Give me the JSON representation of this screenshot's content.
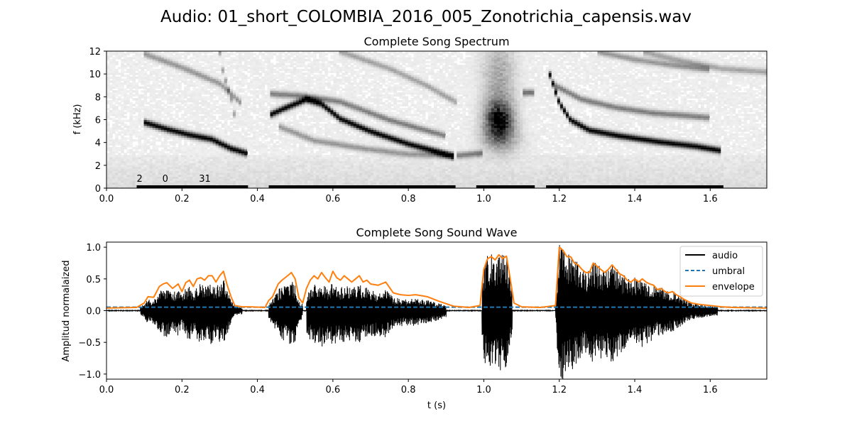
{
  "figure": {
    "suptitle": "Audio: 01_short_COLOMBIA_2016_005_Zonotrichia_capensis.wav"
  },
  "chart_data": [
    {
      "type": "heatmap",
      "title": "Complete Song Spectrum",
      "xlabel": "",
      "ylabel": "f (kHz)",
      "xlim": [
        0.0,
        1.75
      ],
      "ylim": [
        0,
        12
      ],
      "xticks": [
        "0.0",
        "0.2",
        "0.4",
        "0.6",
        "0.8",
        "1.0",
        "1.2",
        "1.4",
        "1.6"
      ],
      "yticks": [
        "0",
        "2",
        "4",
        "6",
        "8",
        "10",
        "12"
      ],
      "colormap": "grayscale (white = low, black = high)",
      "segments": [
        {
          "start": 0.08,
          "end": 0.375
        },
        {
          "start": 0.43,
          "end": 0.925
        },
        {
          "start": 0.98,
          "end": 1.135
        },
        {
          "start": 1.165,
          "end": 1.635
        }
      ],
      "segment_labels": [
        {
          "text": "2",
          "x": 0.08
        },
        {
          "text": "0",
          "x": 0.148
        },
        {
          "text": "31",
          "x": 0.245
        }
      ],
      "traces": [
        {
          "points": [
            [
              0.1,
              5.8
            ],
            [
              0.16,
              5.2
            ],
            [
              0.22,
              4.7
            ],
            [
              0.28,
              4.3
            ],
            [
              0.33,
              3.5
            ],
            [
              0.37,
              3.1
            ]
          ],
          "strength": 0.95
        },
        {
          "points": [
            [
              0.43,
              6.4
            ],
            [
              0.47,
              7.0
            ],
            [
              0.53,
              7.8
            ],
            [
              0.57,
              7.4
            ],
            [
              0.62,
              6.1
            ],
            [
              0.7,
              5.0
            ],
            [
              0.8,
              3.9
            ],
            [
              0.88,
              3.2
            ],
            [
              0.92,
              2.8
            ]
          ],
          "strength": 0.95
        },
        {
          "points": [
            [
              1.17,
              10.5
            ],
            [
              1.2,
              7.5
            ],
            [
              1.23,
              6.0
            ],
            [
              1.28,
              5.1
            ],
            [
              1.36,
              4.6
            ],
            [
              1.46,
              4.1
            ],
            [
              1.56,
              3.7
            ],
            [
              1.63,
              3.3
            ]
          ],
          "strength": 0.95
        },
        {
          "points": [
            [
              0.1,
              11.8
            ],
            [
              0.2,
              10.6
            ],
            [
              0.3,
              9.2
            ],
            [
              0.36,
              7.4
            ]
          ],
          "strength": 0.35
        },
        {
          "points": [
            [
              0.43,
              8.3
            ],
            [
              0.52,
              8.1
            ],
            [
              0.62,
              7.6
            ],
            [
              0.75,
              6.0
            ],
            [
              0.9,
              4.6
            ]
          ],
          "strength": 0.45
        },
        {
          "points": [
            [
              0.62,
              12.0
            ],
            [
              0.75,
              10.5
            ],
            [
              0.85,
              9.0
            ],
            [
              0.93,
              7.5
            ]
          ],
          "strength": 0.3
        },
        {
          "points": [
            [
              0.46,
              5.4
            ],
            [
              0.55,
              4.2
            ],
            [
              0.68,
              3.5
            ],
            [
              0.8,
              3.0
            ],
            [
              0.92,
              2.9
            ]
          ],
          "strength": 0.35
        },
        {
          "points": [
            [
              1.19,
              9.0
            ],
            [
              1.26,
              7.8
            ],
            [
              1.35,
              7.1
            ],
            [
              1.45,
              6.6
            ],
            [
              1.6,
              6.2
            ]
          ],
          "strength": 0.45
        },
        {
          "points": [
            [
              1.3,
              12.0
            ],
            [
              1.4,
              11.3
            ],
            [
              1.5,
              10.8
            ],
            [
              1.6,
              10.4
            ]
          ],
          "strength": 0.35
        },
        {
          "points": [
            [
              1.42,
              12.0
            ],
            [
              1.52,
              11.2
            ],
            [
              1.63,
              10.5
            ],
            [
              1.75,
              10.2
            ]
          ],
          "strength": 0.3
        },
        {
          "points": [
            [
              0.3,
              12.0
            ],
            [
              0.31,
              10.0
            ],
            [
              0.33,
              8.0
            ],
            [
              0.34,
              6.3
            ]
          ],
          "strength": 0.3
        },
        {
          "points": [
            [
              0.93,
              2.9
            ],
            [
              1.0,
              3.1
            ]
          ],
          "strength": 0.45
        },
        {
          "points": [
            [
              1.1,
              8.4
            ],
            [
              1.13,
              8.4
            ]
          ],
          "strength": 0.5
        }
      ],
      "blobs": [
        {
          "x": 1.04,
          "y": 6.0,
          "sx": 0.025,
          "sy": 1.1,
          "strength": 0.85
        },
        {
          "x": 1.04,
          "y": 9.5,
          "sx": 0.03,
          "sy": 2.8,
          "strength": 0.28
        },
        {
          "x": 1.045,
          "y": 4.3,
          "sx": 0.035,
          "sy": 0.9,
          "strength": 0.3
        }
      ]
    },
    {
      "type": "line",
      "title": "Complete Song Sound Wave",
      "xlabel": "t (s)",
      "ylabel": "Amplitud normalaized",
      "xlim": [
        0.0,
        1.75
      ],
      "ylim": [
        -1.08,
        1.08
      ],
      "xticks": [
        "0.0",
        "0.2",
        "0.4",
        "0.6",
        "0.8",
        "1.0",
        "1.2",
        "1.4",
        "1.6"
      ],
      "yticks": [
        "−1.0",
        "−0.5",
        "0.0",
        "0.5",
        "1.0"
      ],
      "legend_position": "upper-right",
      "series": [
        {
          "name": "audio",
          "color": "#000000",
          "style": "solid",
          "x": [
            0.0,
            1.75
          ],
          "y": [
            0.0,
            0.0
          ]
        },
        {
          "name": "umbral",
          "color": "#1f77b4",
          "style": "dashed",
          "x": [
            0.0,
            1.75
          ],
          "y": [
            0.055,
            0.055
          ]
        },
        {
          "name": "envelope",
          "color": "#ff7f0e",
          "style": "solid",
          "x": [
            0.0,
            0.08,
            0.1,
            0.11,
            0.125,
            0.14,
            0.15,
            0.16,
            0.175,
            0.19,
            0.2,
            0.21,
            0.22,
            0.23,
            0.24,
            0.25,
            0.26,
            0.27,
            0.28,
            0.29,
            0.3,
            0.31,
            0.32,
            0.33,
            0.34,
            0.36,
            0.38,
            0.42,
            0.43,
            0.44,
            0.455,
            0.465,
            0.48,
            0.49,
            0.5,
            0.51,
            0.52,
            0.53,
            0.54,
            0.55,
            0.56,
            0.57,
            0.58,
            0.59,
            0.6,
            0.61,
            0.62,
            0.63,
            0.64,
            0.65,
            0.66,
            0.67,
            0.68,
            0.69,
            0.7,
            0.72,
            0.74,
            0.76,
            0.78,
            0.8,
            0.82,
            0.85,
            0.88,
            0.92,
            0.96,
            0.99,
            1.0,
            1.01,
            1.02,
            1.03,
            1.04,
            1.05,
            1.06,
            1.07,
            1.08,
            1.1,
            1.15,
            1.19,
            1.2,
            1.21,
            1.22,
            1.23,
            1.24,
            1.25,
            1.26,
            1.27,
            1.28,
            1.29,
            1.3,
            1.31,
            1.32,
            1.33,
            1.34,
            1.35,
            1.36,
            1.37,
            1.38,
            1.39,
            1.4,
            1.41,
            1.42,
            1.43,
            1.44,
            1.45,
            1.46,
            1.47,
            1.48,
            1.49,
            1.5,
            1.51,
            1.52,
            1.53,
            1.55,
            1.57,
            1.6,
            1.63,
            1.66,
            1.75
          ],
          "y": [
            0.04,
            0.05,
            0.12,
            0.22,
            0.21,
            0.38,
            0.42,
            0.44,
            0.35,
            0.42,
            0.3,
            0.44,
            0.48,
            0.38,
            0.5,
            0.52,
            0.48,
            0.55,
            0.55,
            0.45,
            0.55,
            0.62,
            0.4,
            0.22,
            0.08,
            0.06,
            0.06,
            0.05,
            0.16,
            0.22,
            0.42,
            0.48,
            0.55,
            0.6,
            0.5,
            0.2,
            0.12,
            0.35,
            0.48,
            0.55,
            0.5,
            0.6,
            0.52,
            0.45,
            0.62,
            0.52,
            0.48,
            0.55,
            0.5,
            0.45,
            0.5,
            0.55,
            0.45,
            0.48,
            0.42,
            0.4,
            0.45,
            0.28,
            0.25,
            0.24,
            0.25,
            0.22,
            0.15,
            0.07,
            0.05,
            0.08,
            0.65,
            0.82,
            0.85,
            0.8,
            0.88,
            0.82,
            0.86,
            0.5,
            0.12,
            0.06,
            0.05,
            0.08,
            1.0,
            0.95,
            0.85,
            0.85,
            0.75,
            0.72,
            0.65,
            0.6,
            0.6,
            0.75,
            0.7,
            0.65,
            0.6,
            0.65,
            0.72,
            0.65,
            0.58,
            0.55,
            0.48,
            0.45,
            0.5,
            0.45,
            0.5,
            0.45,
            0.42,
            0.4,
            0.33,
            0.35,
            0.3,
            0.28,
            0.3,
            0.25,
            0.22,
            0.18,
            0.12,
            0.1,
            0.08,
            0.06,
            0.05,
            0.04
          ]
        }
      ],
      "waveform_segments": [
        {
          "start": 0.09,
          "end": 0.36,
          "peak_pos": 0.56,
          "peak_neg": 0.62
        },
        {
          "start": 0.43,
          "end": 0.52,
          "peak_pos": 0.55,
          "peak_neg": 0.62
        },
        {
          "start": 0.53,
          "end": 0.9,
          "peak_pos": 0.52,
          "peak_neg": 0.64
        },
        {
          "start": 0.995,
          "end": 1.075,
          "peak_pos": 0.85,
          "peak_neg": 0.9
        },
        {
          "start": 1.19,
          "end": 1.62,
          "peak_pos": 0.98,
          "peak_neg": 1.0
        }
      ]
    }
  ]
}
